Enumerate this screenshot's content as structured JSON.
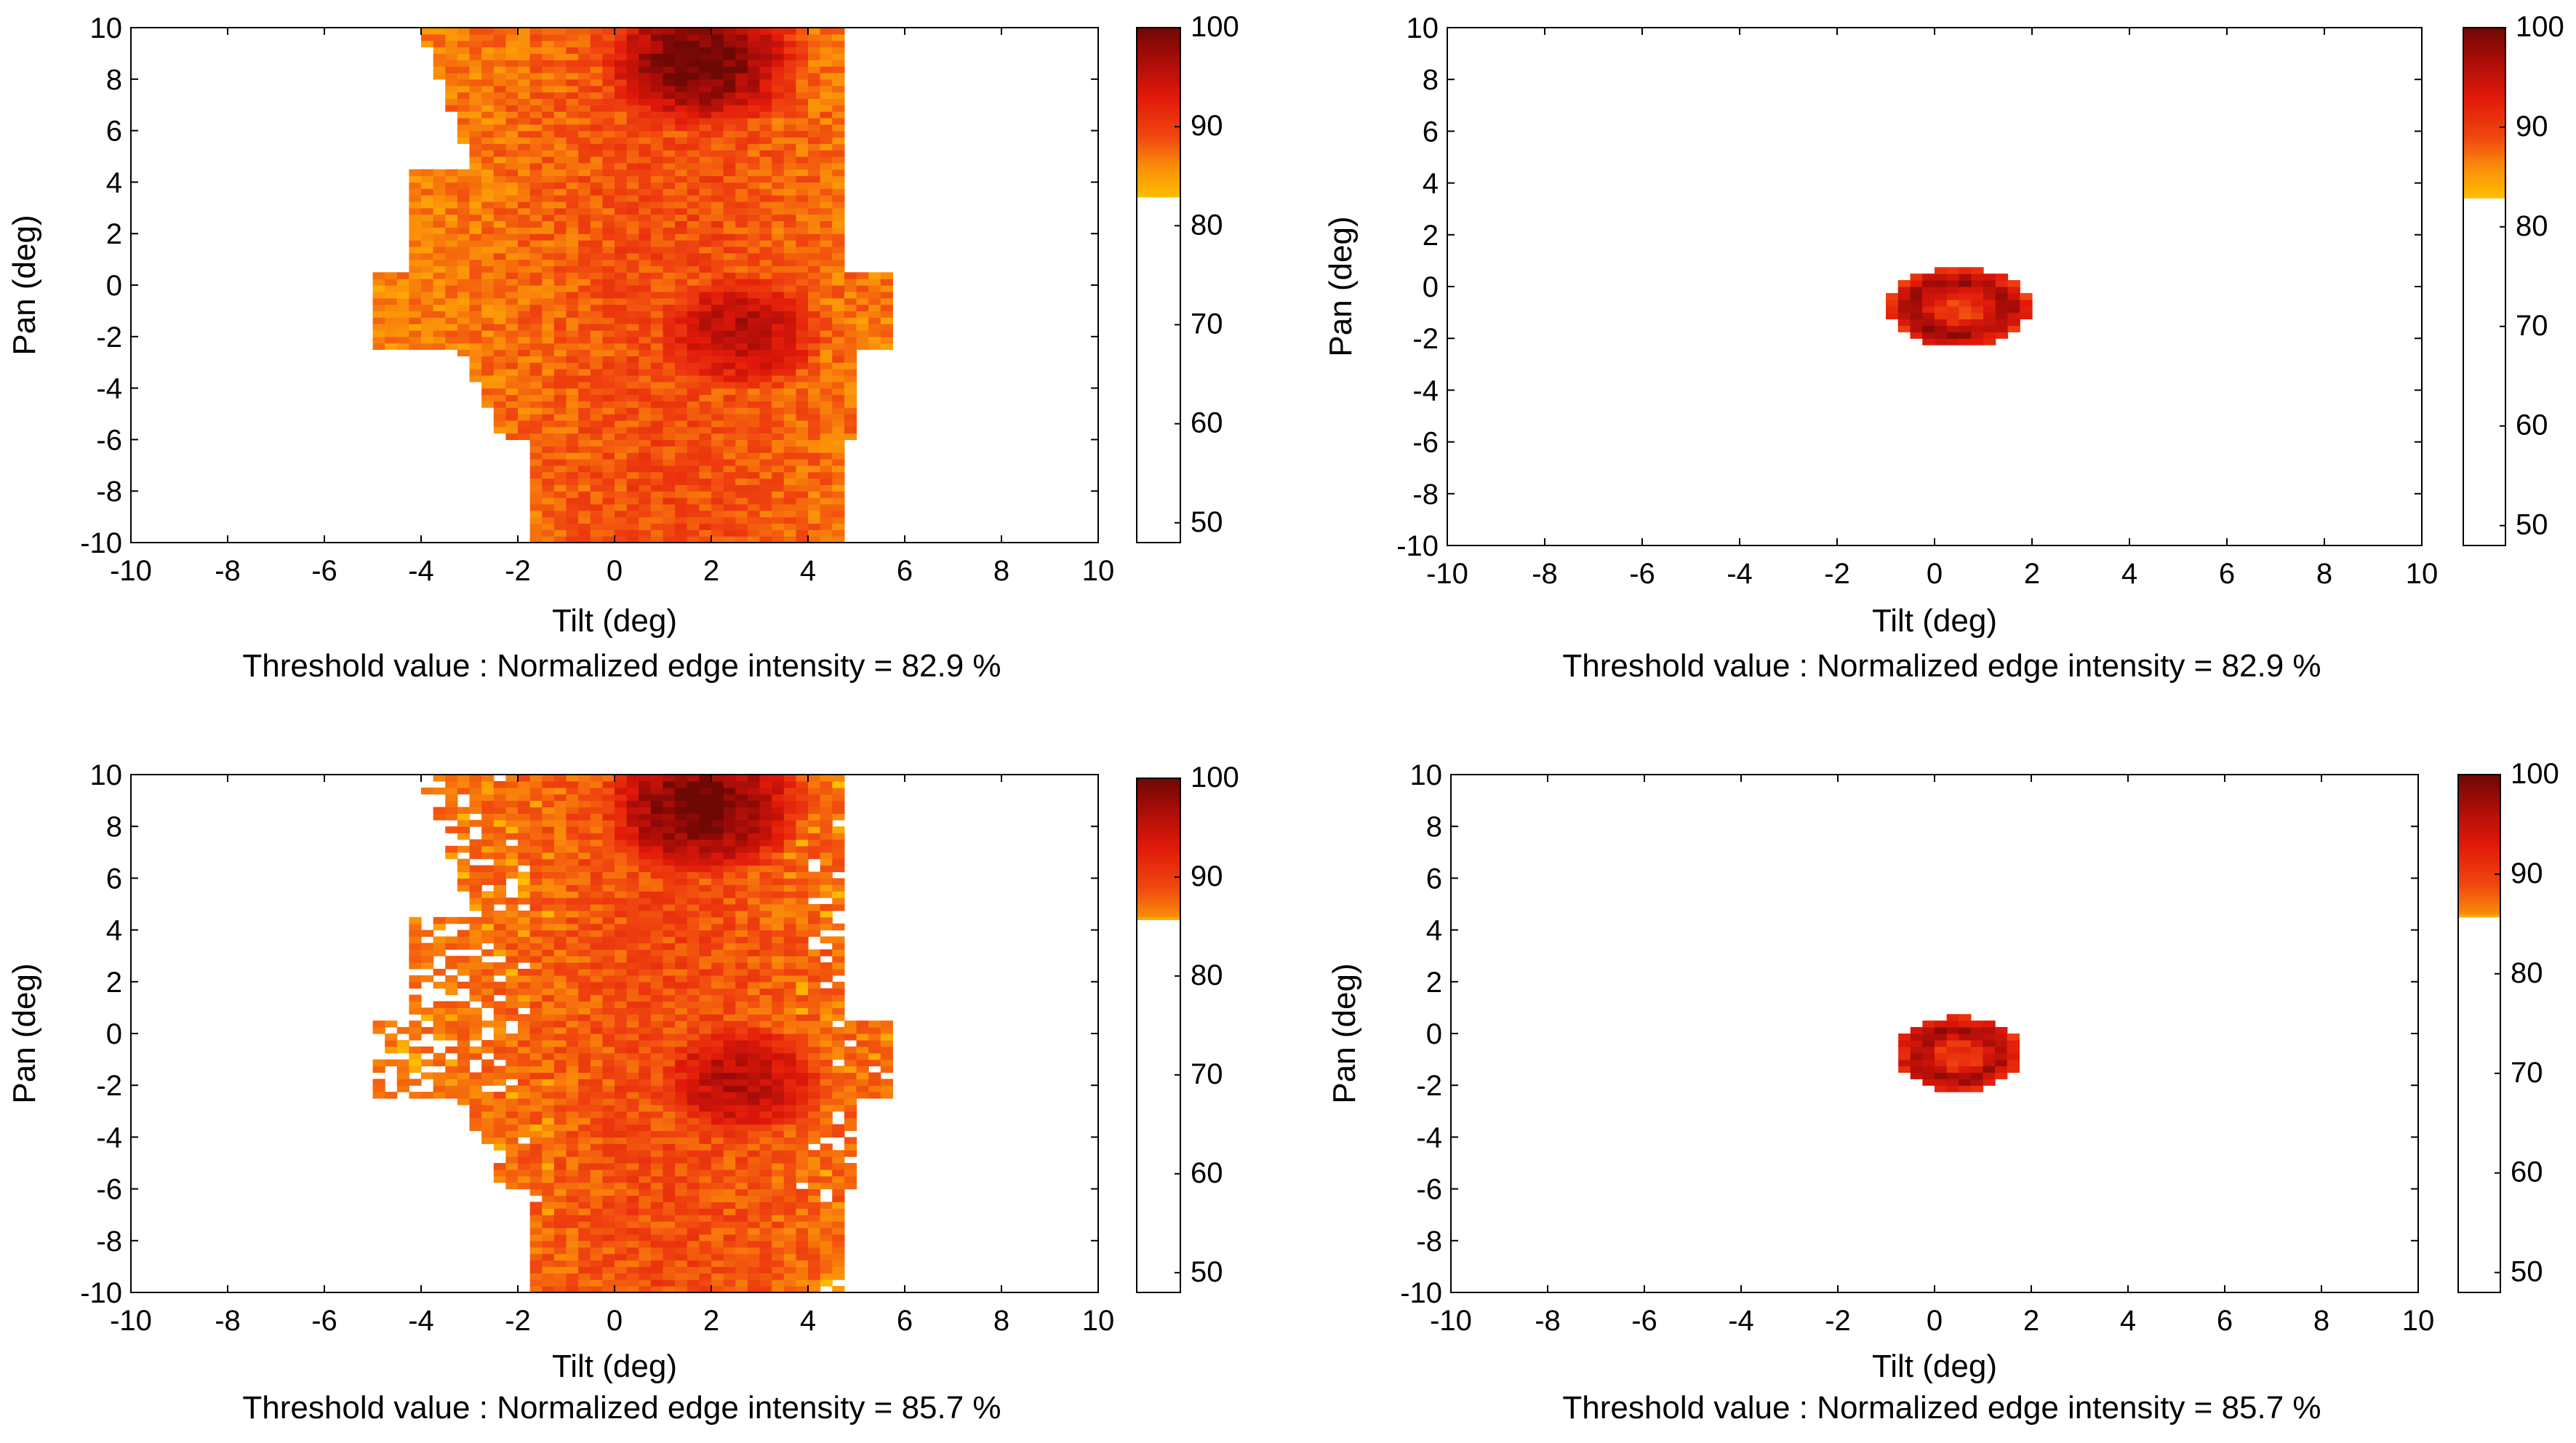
{
  "chart_data": [
    {
      "type": "heatmap",
      "panel": "top-left",
      "xlabel": "Tilt (deg)",
      "ylabel": "Pan (deg)",
      "xlim": [
        -10,
        10
      ],
      "ylim": [
        -10,
        10
      ],
      "xticks": [
        "-10",
        "-8",
        "-6",
        "-4",
        "-2",
        "0",
        "2",
        "4",
        "6",
        "8",
        "10"
      ],
      "yticks": [
        "-10",
        "-8",
        "-6",
        "-4",
        "-2",
        "0",
        "2",
        "4",
        "6",
        "8",
        "10"
      ],
      "colorbar": {
        "min": 48,
        "max": 100,
        "threshold": 82.9,
        "ticks": [
          "50",
          "60",
          "70",
          "80",
          "90",
          "100"
        ]
      },
      "caption": "Threshold value : Normalized edge intensity = 82.9 %",
      "pattern": "broad",
      "hotspots": [
        {
          "tilt": 1.8,
          "pan": 8.8,
          "value": 100
        },
        {
          "tilt": 2.6,
          "pan": -1.8,
          "value": 96
        }
      ]
    },
    {
      "type": "heatmap",
      "panel": "top-right",
      "xlabel": "Tilt (deg)",
      "ylabel": "Pan (deg)",
      "xlim": [
        -10,
        10
      ],
      "ylim": [
        -10,
        10
      ],
      "xticks": [
        "-10",
        "-8",
        "-6",
        "-4",
        "-2",
        "0",
        "2",
        "4",
        "6",
        "8",
        "10"
      ],
      "yticks": [
        "-10",
        "-8",
        "-6",
        "-4",
        "-2",
        "0",
        "2",
        "4",
        "6",
        "8",
        "10"
      ],
      "colorbar": {
        "min": 48,
        "max": 100,
        "threshold": 82.9,
        "ticks": [
          "50",
          "60",
          "70",
          "80",
          "90",
          "100"
        ]
      },
      "caption": "Threshold value : Normalized edge intensity = 82.9 %",
      "pattern": "spot",
      "spot": {
        "tilt": 0.5,
        "pan": -0.8,
        "rx": 1.45,
        "ry": 1.55
      }
    },
    {
      "type": "heatmap",
      "panel": "bottom-left",
      "xlabel": "Tilt (deg)",
      "ylabel": "Pan (deg)",
      "xlim": [
        -10,
        10
      ],
      "ylim": [
        -10,
        10
      ],
      "xticks": [
        "-10",
        "-8",
        "-6",
        "-4",
        "-2",
        "0",
        "2",
        "4",
        "6",
        "8",
        "10"
      ],
      "yticks": [
        "-10",
        "-8",
        "-6",
        "-4",
        "-2",
        "0",
        "2",
        "4",
        "6",
        "8",
        "10"
      ],
      "colorbar": {
        "min": 48,
        "max": 100,
        "threshold": 85.7,
        "ticks": [
          "50",
          "60",
          "70",
          "80",
          "90",
          "100"
        ]
      },
      "caption": "Threshold value : Normalized edge intensity = 85.7 %",
      "pattern": "broad",
      "hotspots": [
        {
          "tilt": 1.8,
          "pan": 8.8,
          "value": 100
        },
        {
          "tilt": 2.6,
          "pan": -1.8,
          "value": 96
        }
      ]
    },
    {
      "type": "heatmap",
      "panel": "bottom-right",
      "xlabel": "Tilt (deg)",
      "ylabel": "Pan (deg)",
      "xlim": [
        -10,
        10
      ],
      "ylim": [
        -10,
        10
      ],
      "xticks": [
        "-10",
        "-8",
        "-6",
        "-4",
        "-2",
        "0",
        "2",
        "4",
        "6",
        "8",
        "10"
      ],
      "yticks": [
        "-10",
        "-8",
        "-6",
        "-4",
        "-2",
        "0",
        "2",
        "4",
        "6",
        "8",
        "10"
      ],
      "colorbar": {
        "min": 48,
        "max": 100,
        "threshold": 85.7,
        "ticks": [
          "50",
          "60",
          "70",
          "80",
          "90",
          "100"
        ]
      },
      "caption": "Threshold value : Normalized edge intensity = 85.7 %",
      "pattern": "spot",
      "spot": {
        "tilt": 0.5,
        "pan": -0.8,
        "rx": 1.3,
        "ry": 1.45
      }
    }
  ]
}
